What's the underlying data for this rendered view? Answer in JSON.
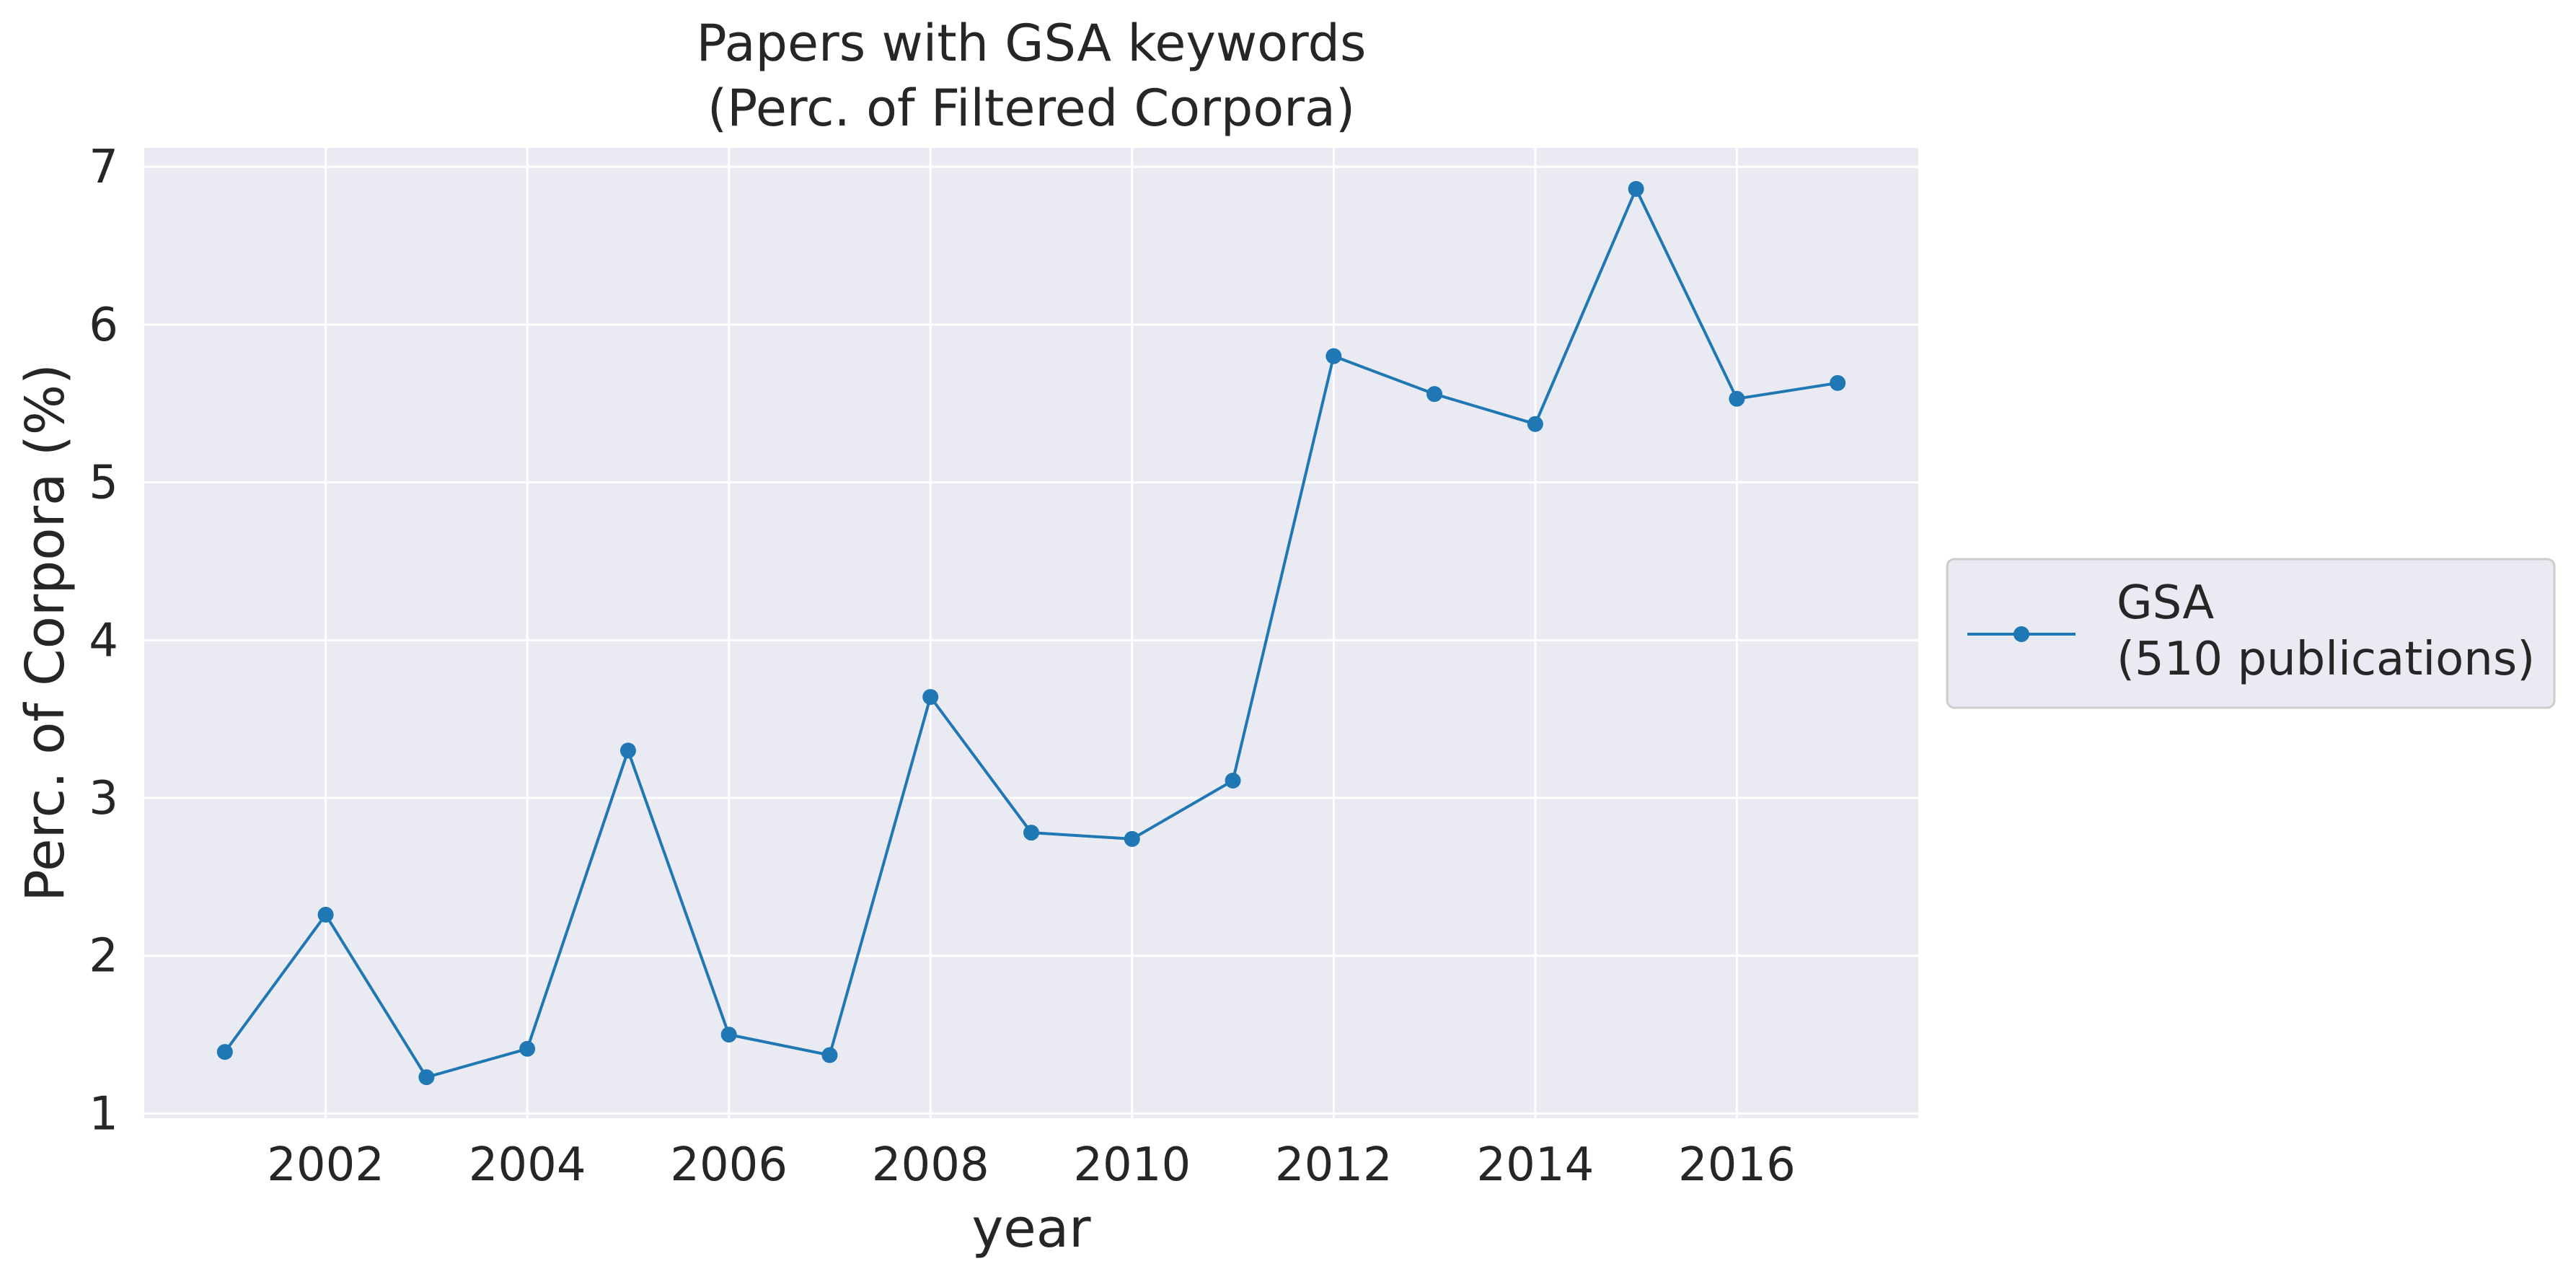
{
  "chart_data": {
    "type": "line",
    "title": "Papers with GSA keywords",
    "subtitle": "(Perc. of Filtered Corpora)",
    "xlabel": "year",
    "ylabel": "Perc. of Corpora (%)",
    "x": [
      2001,
      2002,
      2003,
      2004,
      2005,
      2006,
      2007,
      2008,
      2009,
      2010,
      2011,
      2012,
      2013,
      2014,
      2015,
      2016,
      2017
    ],
    "x_ticks": [
      "2002",
      "2004",
      "2006",
      "2008",
      "2010",
      "2012",
      "2014",
      "2016"
    ],
    "y_ticks": [
      "1",
      "2",
      "3",
      "4",
      "5",
      "6",
      "7"
    ],
    "xlim": [
      2000.2,
      2017.8
    ],
    "ylim": [
      0.97,
      7.12
    ],
    "grid": true,
    "legend_position": "outside right",
    "series": [
      {
        "name": "GSA",
        "name_line2": "(510 publications)",
        "color": "#1f77b4",
        "marker": "circle",
        "values": [
          1.39,
          2.26,
          1.23,
          1.41,
          3.3,
          1.5,
          1.37,
          3.64,
          2.78,
          2.74,
          3.11,
          5.8,
          5.56,
          5.37,
          6.86,
          5.53,
          5.63
        ]
      }
    ]
  },
  "colors": {
    "plot_background": "#eaeaf2",
    "grid": "#ffffff",
    "text": "#262626",
    "line": "#1f77b4"
  }
}
